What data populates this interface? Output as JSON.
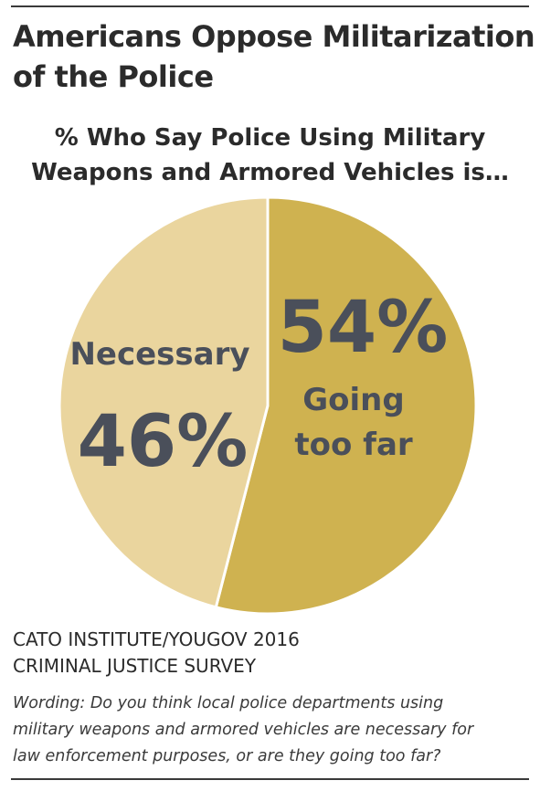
{
  "header": {
    "title_lines": [
      "Americans Oppose Militarization",
      "of the Police"
    ],
    "subtitle_lines": [
      "% Who Say Police Using Military",
      "Weapons and Armored Vehicles is…"
    ]
  },
  "chart_data": {
    "type": "pie",
    "title": "Americans Oppose Militarization of the Police",
    "subtitle": "% Who Say Police Using Military Weapons and Armored Vehicles is…",
    "slices": [
      {
        "label": "Going too far",
        "label_lines": [
          "Going",
          "too far"
        ],
        "value": 54,
        "display": "54%",
        "color": "#cfb250"
      },
      {
        "label": "Necessary",
        "label_lines": [
          "Necessary"
        ],
        "value": 46,
        "display": "46%",
        "color": "#ead59e"
      }
    ],
    "label_color": "#4a4f5a",
    "legend": "none"
  },
  "footer": {
    "source_lines": [
      "CATO INSTITUTE/YOUGOV 2016",
      "CRIMINAL JUSTICE SURVEY"
    ],
    "wording_lines": [
      "Wording: Do you think local police departments using",
      "military weapons and armored vehicles are necessary for",
      "law enforcement purposes, or are they going too far?"
    ]
  }
}
